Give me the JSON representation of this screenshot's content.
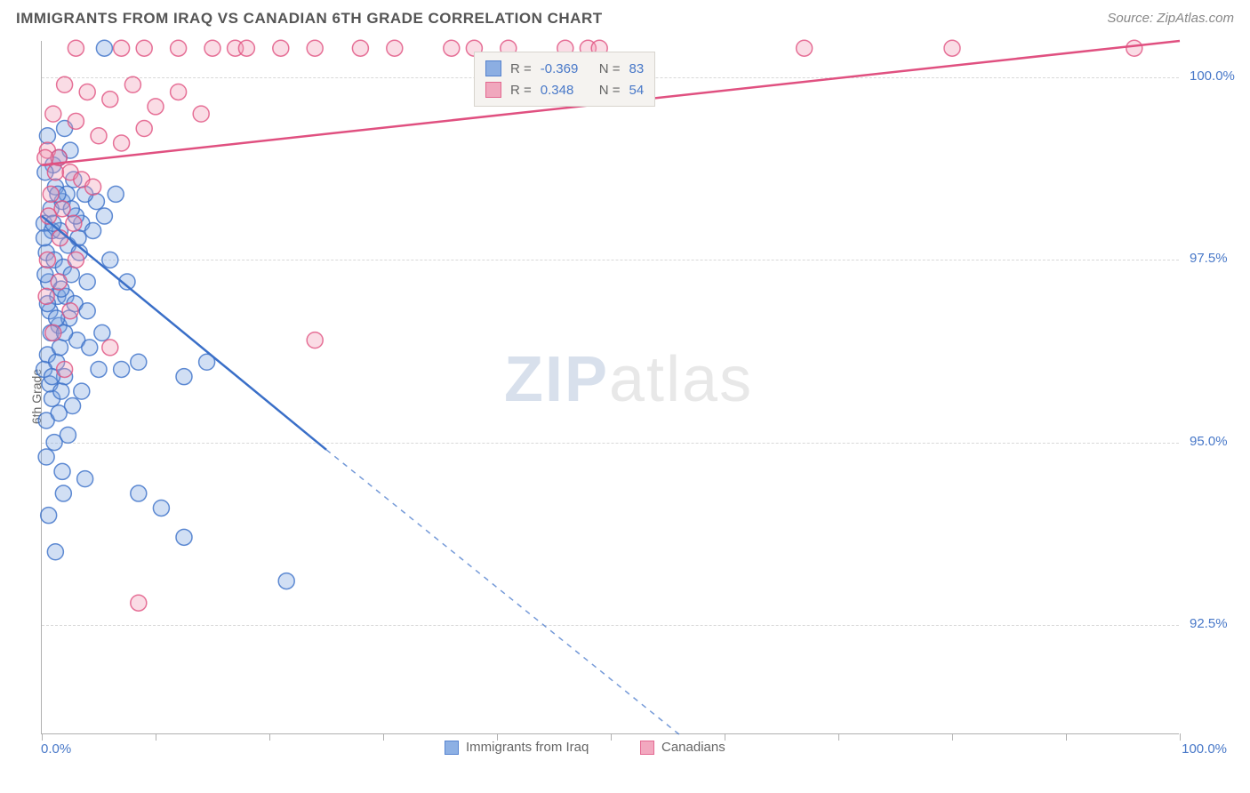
{
  "header": {
    "title": "IMMIGRANTS FROM IRAQ VS CANADIAN 6TH GRADE CORRELATION CHART",
    "source_prefix": "Source: ",
    "source": "ZipAtlas.com"
  },
  "watermark": {
    "zip": "ZIP",
    "atlas": "atlas"
  },
  "chart": {
    "type": "scatter",
    "xlim": [
      0,
      100
    ],
    "ylim": [
      91.0,
      100.5
    ],
    "background_color": "#ffffff",
    "grid_color": "#d8d8d8",
    "axis_color": "#b0b0b0",
    "tick_label_color": "#4878c8",
    "ylabel": "6th Grade",
    "xtick_labels": {
      "min": "0.0%",
      "max": "100.0%"
    },
    "ytick_labels": [
      "92.5%",
      "95.0%",
      "97.5%",
      "100.0%"
    ],
    "ytick_values": [
      92.5,
      95.0,
      97.5,
      100.0
    ],
    "xtick_positions": [
      0,
      10,
      20,
      30,
      40,
      50,
      60,
      70,
      80,
      90,
      100
    ],
    "marker_radius": 9,
    "marker_fill_opacity": 0.35,
    "marker_stroke_width": 1.5,
    "series": [
      {
        "name": "Immigrants from Iraq",
        "color_stroke": "#3a6fc8",
        "color_fill": "#7aa3e0",
        "r_value": "-0.369",
        "n_value": "83",
        "trend": {
          "x1": 0,
          "y1": 98.1,
          "x2": 25,
          "y2": 94.9,
          "extrap_x2": 56,
          "extrap_y2": 91.0
        },
        "points": [
          [
            5.5,
            100.4
          ],
          [
            0.5,
            99.2
          ],
          [
            1.0,
            98.8
          ],
          [
            1.5,
            98.9
          ],
          [
            2.0,
            99.3
          ],
          [
            2.5,
            99.0
          ],
          [
            0.3,
            98.7
          ],
          [
            1.2,
            98.5
          ],
          [
            0.8,
            98.2
          ],
          [
            1.8,
            98.3
          ],
          [
            2.8,
            98.6
          ],
          [
            3.5,
            98.0
          ],
          [
            0.2,
            98.0
          ],
          [
            0.9,
            97.9
          ],
          [
            1.6,
            97.9
          ],
          [
            2.3,
            97.7
          ],
          [
            3.0,
            98.1
          ],
          [
            4.5,
            97.9
          ],
          [
            5.5,
            98.1
          ],
          [
            6.5,
            98.4
          ],
          [
            0.4,
            97.6
          ],
          [
            1.1,
            97.5
          ],
          [
            1.9,
            97.4
          ],
          [
            2.6,
            97.3
          ],
          [
            3.3,
            97.6
          ],
          [
            4.0,
            97.2
          ],
          [
            0.6,
            97.2
          ],
          [
            1.4,
            97.0
          ],
          [
            2.1,
            97.0
          ],
          [
            0.7,
            96.8
          ],
          [
            1.5,
            96.6
          ],
          [
            2.4,
            96.7
          ],
          [
            3.1,
            96.4
          ],
          [
            4.2,
            96.3
          ],
          [
            0.5,
            96.2
          ],
          [
            1.3,
            96.1
          ],
          [
            2.0,
            95.9
          ],
          [
            5.0,
            96.0
          ],
          [
            7.0,
            96.0
          ],
          [
            8.5,
            96.1
          ],
          [
            0.9,
            95.6
          ],
          [
            2.7,
            95.5
          ],
          [
            0.4,
            95.3
          ],
          [
            1.1,
            95.0
          ],
          [
            12.5,
            95.9
          ],
          [
            14.5,
            96.1
          ],
          [
            1.8,
            94.6
          ],
          [
            3.8,
            94.5
          ],
          [
            0.6,
            94.0
          ],
          [
            8.5,
            94.3
          ],
          [
            10.5,
            94.1
          ],
          [
            1.2,
            93.5
          ],
          [
            12.5,
            93.7
          ],
          [
            21.5,
            93.1
          ],
          [
            3.2,
            97.8
          ],
          [
            4.8,
            98.3
          ],
          [
            2.2,
            98.4
          ],
          [
            0.3,
            97.3
          ],
          [
            1.7,
            97.1
          ],
          [
            2.9,
            96.9
          ],
          [
            0.8,
            96.5
          ],
          [
            1.6,
            96.3
          ],
          [
            3.5,
            95.7
          ],
          [
            6.0,
            97.5
          ],
          [
            7.5,
            97.2
          ],
          [
            0.2,
            97.8
          ],
          [
            1.0,
            98.0
          ],
          [
            1.4,
            98.4
          ],
          [
            2.6,
            98.2
          ],
          [
            3.8,
            98.4
          ],
          [
            0.5,
            96.9
          ],
          [
            1.3,
            96.7
          ],
          [
            2.0,
            96.5
          ],
          [
            4.0,
            96.8
          ],
          [
            5.3,
            96.5
          ],
          [
            0.7,
            95.8
          ],
          [
            1.5,
            95.4
          ],
          [
            2.3,
            95.1
          ],
          [
            0.4,
            94.8
          ],
          [
            1.9,
            94.3
          ],
          [
            0.2,
            96.0
          ],
          [
            0.9,
            95.9
          ],
          [
            1.7,
            95.7
          ]
        ]
      },
      {
        "name": "Canadians",
        "color_stroke": "#e05080",
        "color_fill": "#f09ab5",
        "r_value": "0.348",
        "n_value": "54",
        "trend": {
          "x1": 0,
          "y1": 98.8,
          "x2": 100,
          "y2": 100.5
        },
        "points": [
          [
            3,
            100.4
          ],
          [
            7,
            100.4
          ],
          [
            9,
            100.4
          ],
          [
            12,
            100.4
          ],
          [
            15,
            100.4
          ],
          [
            17,
            100.4
          ],
          [
            18,
            100.4
          ],
          [
            21,
            100.4
          ],
          [
            24,
            100.4
          ],
          [
            28,
            100.4
          ],
          [
            31,
            100.4
          ],
          [
            36,
            100.4
          ],
          [
            38,
            100.4
          ],
          [
            41,
            100.4
          ],
          [
            46,
            100.4
          ],
          [
            48,
            100.4
          ],
          [
            49,
            100.4
          ],
          [
            67,
            100.4
          ],
          [
            80,
            100.4
          ],
          [
            96,
            100.4
          ],
          [
            2,
            99.9
          ],
          [
            4,
            99.8
          ],
          [
            6,
            99.7
          ],
          [
            8,
            99.9
          ],
          [
            10,
            99.6
          ],
          [
            12,
            99.8
          ],
          [
            14,
            99.5
          ],
          [
            1,
            99.5
          ],
          [
            3,
            99.4
          ],
          [
            5,
            99.2
          ],
          [
            7,
            99.1
          ],
          [
            9,
            99.3
          ],
          [
            0.5,
            99.0
          ],
          [
            1.5,
            98.9
          ],
          [
            2.5,
            98.7
          ],
          [
            3.5,
            98.6
          ],
          [
            4.5,
            98.5
          ],
          [
            0.8,
            98.4
          ],
          [
            1.8,
            98.2
          ],
          [
            2.8,
            98.0
          ],
          [
            0.3,
            98.9
          ],
          [
            1.2,
            98.7
          ],
          [
            0.6,
            98.1
          ],
          [
            1.6,
            97.8
          ],
          [
            3.0,
            97.5
          ],
          [
            6.0,
            96.3
          ],
          [
            24,
            96.4
          ],
          [
            0.4,
            97.0
          ],
          [
            1.0,
            96.5
          ],
          [
            2.0,
            96.0
          ],
          [
            8.5,
            92.8
          ],
          [
            0.5,
            97.5
          ],
          [
            1.5,
            97.2
          ],
          [
            2.5,
            96.8
          ]
        ]
      }
    ],
    "legend_top": {
      "r_label": "R =",
      "n_label": "N ="
    },
    "legend_bottom": {
      "items": [
        "Immigrants from Iraq",
        "Canadians"
      ]
    }
  }
}
